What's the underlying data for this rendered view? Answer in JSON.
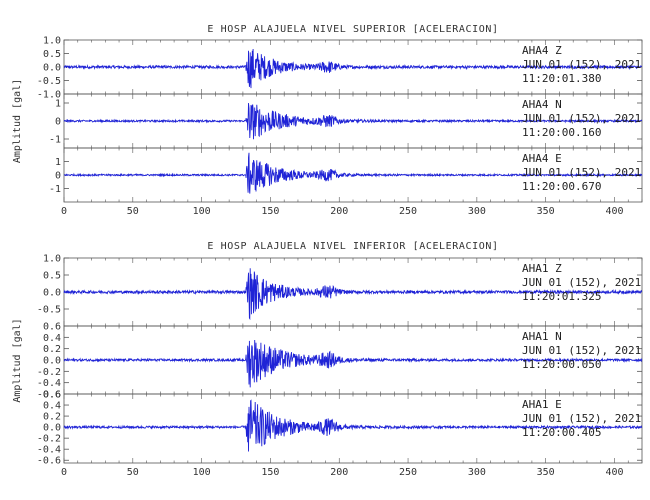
{
  "chart_data": [
    {
      "type": "line",
      "title": "E HOSP ALAJUELA NIVEL SUPERIOR [ACELERACION]",
      "ylabel": "Amplitud [gal]",
      "xlabel": "",
      "xlim": [
        0,
        420
      ],
      "x_ticks": [
        "0",
        "50",
        "100",
        "150",
        "200",
        "250",
        "300",
        "350",
        "400"
      ],
      "traces": [
        {
          "station": "AHA4",
          "component": "Z",
          "date": "JUN 01 (152), 2021",
          "time": "11:20:01.380",
          "ylim": [
            -1.0,
            1.0
          ],
          "y_ticks": [
            "1.0",
            "0.5",
            "0.0",
            "-0.5",
            "-1.0"
          ],
          "y_tick_values": [
            1.0,
            0.5,
            0.0,
            -0.5,
            -1.0
          ],
          "onset_s": 132,
          "peak": 0.95,
          "noise": 0.05,
          "decay_s": 16
        },
        {
          "station": "AHA4",
          "component": "N",
          "date": "JUN 01 (152), 2021",
          "time": "11:20:00.160",
          "ylim": [
            -1.5,
            1.5
          ],
          "y_ticks": [
            "1",
            "0",
            "-1"
          ],
          "y_tick_values": [
            1,
            0,
            -1
          ],
          "onset_s": 132,
          "peak": 1.3,
          "noise": 0.05,
          "decay_s": 22
        },
        {
          "station": "AHA4",
          "component": "E",
          "date": "JUN 01 (152), 2021",
          "time": "11:20:00.670",
          "ylim": [
            -2.0,
            2.0
          ],
          "y_ticks": [
            "1",
            "0",
            "-1"
          ],
          "y_tick_values": [
            1,
            0,
            -1
          ],
          "onset_s": 132,
          "peak": 1.8,
          "noise": 0.06,
          "decay_s": 20
        }
      ]
    },
    {
      "type": "line",
      "title": "E HOSP ALAJUELA NIVEL INFERIOR [ACELERACION]",
      "ylabel": "Amplitud [gal]",
      "xlabel": "",
      "xlim": [
        0,
        420
      ],
      "x_ticks": [
        "0",
        "50",
        "100",
        "150",
        "200",
        "250",
        "300",
        "350",
        "400"
      ],
      "traces": [
        {
          "station": "AHA1",
          "component": "Z",
          "date": "JUN 01 (152), 2021",
          "time": "11:20:01.325",
          "ylim": [
            -1.0,
            1.0
          ],
          "y_ticks": [
            "1.0",
            "0.5",
            "0.0",
            "-0.5"
          ],
          "y_tick_values": [
            1.0,
            0.5,
            0.0,
            -0.5
          ],
          "onset_s": 132,
          "peak": 0.9,
          "noise": 0.04,
          "decay_s": 16
        },
        {
          "station": "AHA1",
          "component": "N",
          "date": "JUN 01 (152), 2021",
          "time": "11:20:00.050",
          "ylim": [
            -0.6,
            0.6
          ],
          "y_ticks": [
            "0.6",
            "0.4",
            "0.2",
            "0.0",
            "-0.2",
            "-0.4",
            "-0.6"
          ],
          "y_tick_values": [
            0.6,
            0.4,
            0.2,
            0.0,
            -0.2,
            -0.4,
            -0.6
          ],
          "onset_s": 132,
          "peak": 0.55,
          "noise": 0.02,
          "decay_s": 22
        },
        {
          "station": "AHA1",
          "component": "E",
          "date": "JUN 01 (152), 2021",
          "time": "11:20:00.405",
          "ylim": [
            -0.65,
            0.6
          ],
          "y_ticks": [
            "0.6",
            "0.4",
            "0.2",
            "0.0",
            "-0.2",
            "-0.4",
            "-0.6"
          ],
          "y_tick_values": [
            0.6,
            0.4,
            0.2,
            0.0,
            -0.2,
            -0.4,
            -0.6
          ],
          "onset_s": 132,
          "peak": 0.62,
          "noise": 0.02,
          "decay_s": 20
        }
      ]
    }
  ],
  "colors": {
    "trace": "#1f23d6",
    "axis": "#555555",
    "text": "#333333"
  }
}
